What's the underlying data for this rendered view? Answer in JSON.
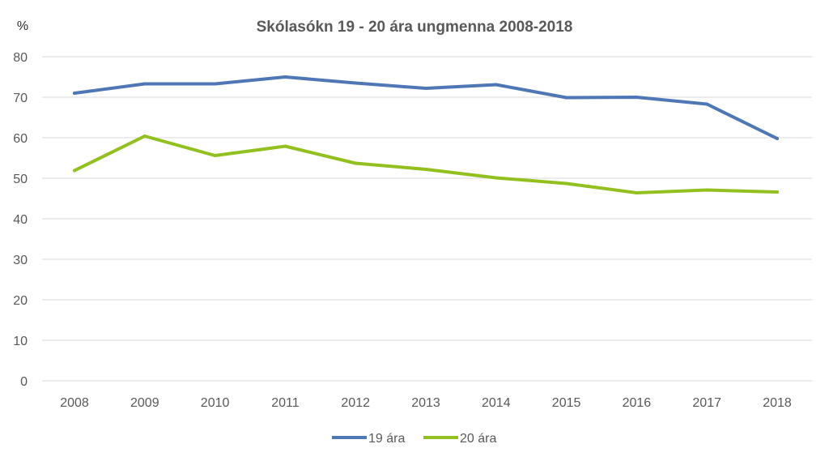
{
  "chart_data": {
    "type": "line",
    "title": "Skólasókn 19 - 20 ára ungmenna 2008-2018",
    "ylabel": "%",
    "xlabel": "",
    "categories": [
      "2008",
      "2009",
      "2010",
      "2011",
      "2012",
      "2013",
      "2014",
      "2015",
      "2016",
      "2017",
      "2018"
    ],
    "ylim": [
      0,
      80
    ],
    "yticks": [
      0,
      10,
      20,
      30,
      40,
      50,
      60,
      70,
      80
    ],
    "grid": true,
    "legend": "bottom",
    "series": [
      {
        "name": "19 ára",
        "color": "#4f77b6",
        "values": [
          71.0,
          73.3,
          73.3,
          75.0,
          73.5,
          72.2,
          73.1,
          69.9,
          70.0,
          68.3,
          59.8
        ]
      },
      {
        "name": "20 ára",
        "color": "#92c01f",
        "values": [
          51.9,
          60.4,
          55.6,
          57.9,
          53.7,
          52.2,
          50.1,
          48.7,
          46.4,
          47.1,
          46.6
        ]
      }
    ]
  }
}
